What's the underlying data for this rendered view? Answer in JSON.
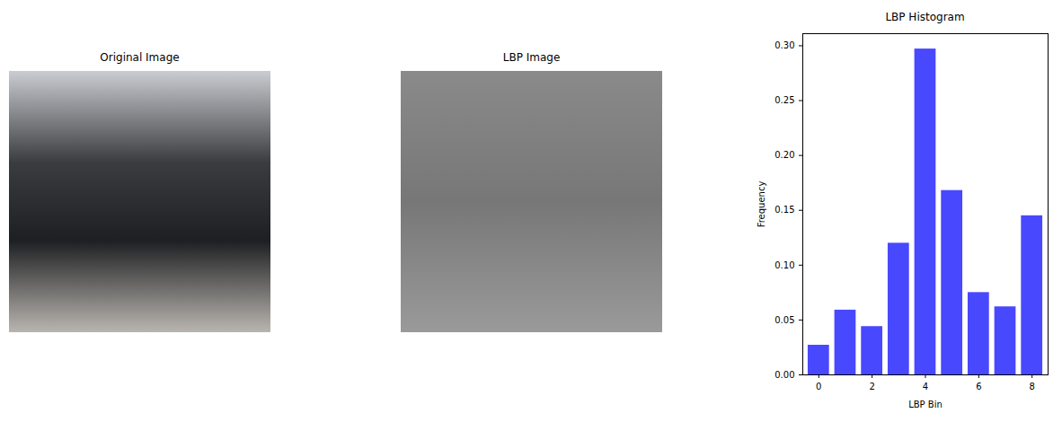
{
  "chart_data": [
    {
      "type": "image",
      "title": "Original Image"
    },
    {
      "type": "image",
      "title": "LBP Image"
    },
    {
      "type": "bar",
      "title": "LBP Histogram",
      "x_label": "LBP Bin",
      "y_label": "Frequency",
      "x": [
        0,
        1,
        2,
        3,
        4,
        5,
        6,
        7,
        8
      ],
      "values": [
        0.027,
        0.059,
        0.044,
        0.12,
        0.297,
        0.168,
        0.075,
        0.062,
        0.145
      ],
      "color": "#4848ff",
      "xlim": [
        -0.6,
        8.6
      ],
      "xticks": [
        0,
        2,
        4,
        6,
        8
      ],
      "ylim": [
        0,
        0.311
      ],
      "yticks": [
        {
          "value": 0,
          "label": "0.00"
        },
        {
          "value": 0.05,
          "label": "0.05"
        },
        {
          "value": 0.1,
          "label": "0.10"
        },
        {
          "value": 0.15,
          "label": "0.15"
        },
        {
          "value": 0.2,
          "label": "0.20"
        },
        {
          "value": 0.25,
          "label": "0.25"
        },
        {
          "value": 0.3,
          "label": "0.30"
        }
      ],
      "grid": false
    }
  ]
}
